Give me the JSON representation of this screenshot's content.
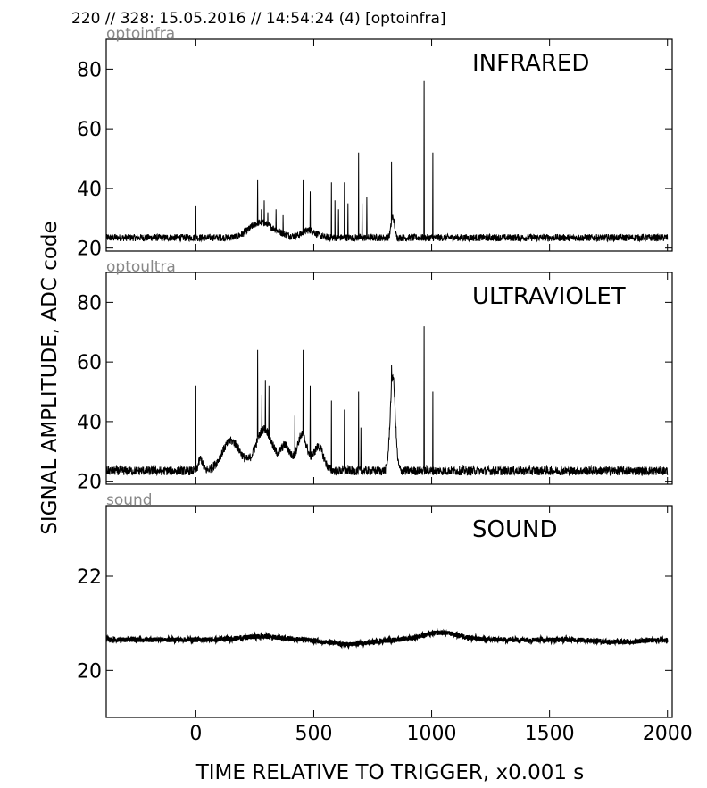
{
  "header": "220 // 328:   15.05.2016 // 14:54:24 (4)  [optoinfra]",
  "ylabel": "SIGNAL AMPLITUDE,  ADC code",
  "xlabel": "TIME RELATIVE TO TRIGGER,   x0.001 s",
  "chart_data": [
    {
      "type": "line",
      "channel": "optoinfra",
      "title": "INFRARED",
      "xlim": [
        -380,
        2020
      ],
      "ylim": [
        19,
        90
      ],
      "xticks": [
        0,
        500,
        1000,
        1500,
        2000
      ],
      "yticks": [
        20,
        40,
        60,
        80
      ],
      "baseline": 23.5,
      "noise": 1.2,
      "bumps": [
        {
          "x": 260,
          "w": 55,
          "h": 2.5
        },
        {
          "x": 300,
          "w": 80,
          "h": 3
        },
        {
          "x": 480,
          "w": 40,
          "h": 2.5
        },
        {
          "x": 835,
          "w": 10,
          "h": 7
        }
      ],
      "spikes": [
        {
          "x": 0,
          "y": 34
        },
        {
          "x": 262,
          "y": 43
        },
        {
          "x": 278,
          "y": 33
        },
        {
          "x": 290,
          "y": 36
        },
        {
          "x": 305,
          "y": 32
        },
        {
          "x": 340,
          "y": 33
        },
        {
          "x": 370,
          "y": 31
        },
        {
          "x": 455,
          "y": 43
        },
        {
          "x": 485,
          "y": 39
        },
        {
          "x": 575,
          "y": 42
        },
        {
          "x": 590,
          "y": 36
        },
        {
          "x": 605,
          "y": 33
        },
        {
          "x": 630,
          "y": 42
        },
        {
          "x": 645,
          "y": 35
        },
        {
          "x": 690,
          "y": 52
        },
        {
          "x": 705,
          "y": 35
        },
        {
          "x": 725,
          "y": 37
        },
        {
          "x": 830,
          "y": 49
        },
        {
          "x": 968,
          "y": 76
        },
        {
          "x": 1005,
          "y": 52
        }
      ]
    },
    {
      "type": "line",
      "channel": "optoultra",
      "title": "ULTRAVIOLET",
      "xlim": [
        -380,
        2020
      ],
      "ylim": [
        19,
        90
      ],
      "xticks": [
        0,
        500,
        1000,
        1500,
        2000
      ],
      "yticks": [
        20,
        40,
        60,
        80
      ],
      "baseline": 23.5,
      "noise": 1.5,
      "bumps": [
        {
          "x": 20,
          "w": 12,
          "h": 4
        },
        {
          "x": 150,
          "w": 55,
          "h": 10
        },
        {
          "x": 290,
          "w": 50,
          "h": 14
        },
        {
          "x": 380,
          "w": 30,
          "h": 8
        },
        {
          "x": 450,
          "w": 30,
          "h": 12
        },
        {
          "x": 520,
          "w": 30,
          "h": 8
        },
        {
          "x": 835,
          "w": 15,
          "h": 32
        }
      ],
      "spikes": [
        {
          "x": 0,
          "y": 52
        },
        {
          "x": 262,
          "y": 64
        },
        {
          "x": 280,
          "y": 49
        },
        {
          "x": 295,
          "y": 54
        },
        {
          "x": 310,
          "y": 52
        },
        {
          "x": 420,
          "y": 42
        },
        {
          "x": 455,
          "y": 64
        },
        {
          "x": 485,
          "y": 52
        },
        {
          "x": 575,
          "y": 47
        },
        {
          "x": 630,
          "y": 44
        },
        {
          "x": 690,
          "y": 50
        },
        {
          "x": 700,
          "y": 38
        },
        {
          "x": 830,
          "y": 59
        },
        {
          "x": 968,
          "y": 72
        },
        {
          "x": 1005,
          "y": 50
        }
      ]
    },
    {
      "type": "line",
      "channel": "sound",
      "title": "SOUND",
      "xlim": [
        -380,
        2020
      ],
      "ylim": [
        19,
        23.5
      ],
      "xticks": [
        0,
        500,
        1000,
        1500,
        2000
      ],
      "yticks": [
        20,
        22
      ],
      "baseline": 20.65,
      "noise": 0.05,
      "bumps": [
        {
          "x": 280,
          "w": 120,
          "h": 0.07
        },
        {
          "x": 650,
          "w": 120,
          "h": -0.1
        },
        {
          "x": 1040,
          "w": 110,
          "h": 0.15
        },
        {
          "x": 1800,
          "w": 110,
          "h": -0.05
        }
      ],
      "spikes": []
    }
  ]
}
